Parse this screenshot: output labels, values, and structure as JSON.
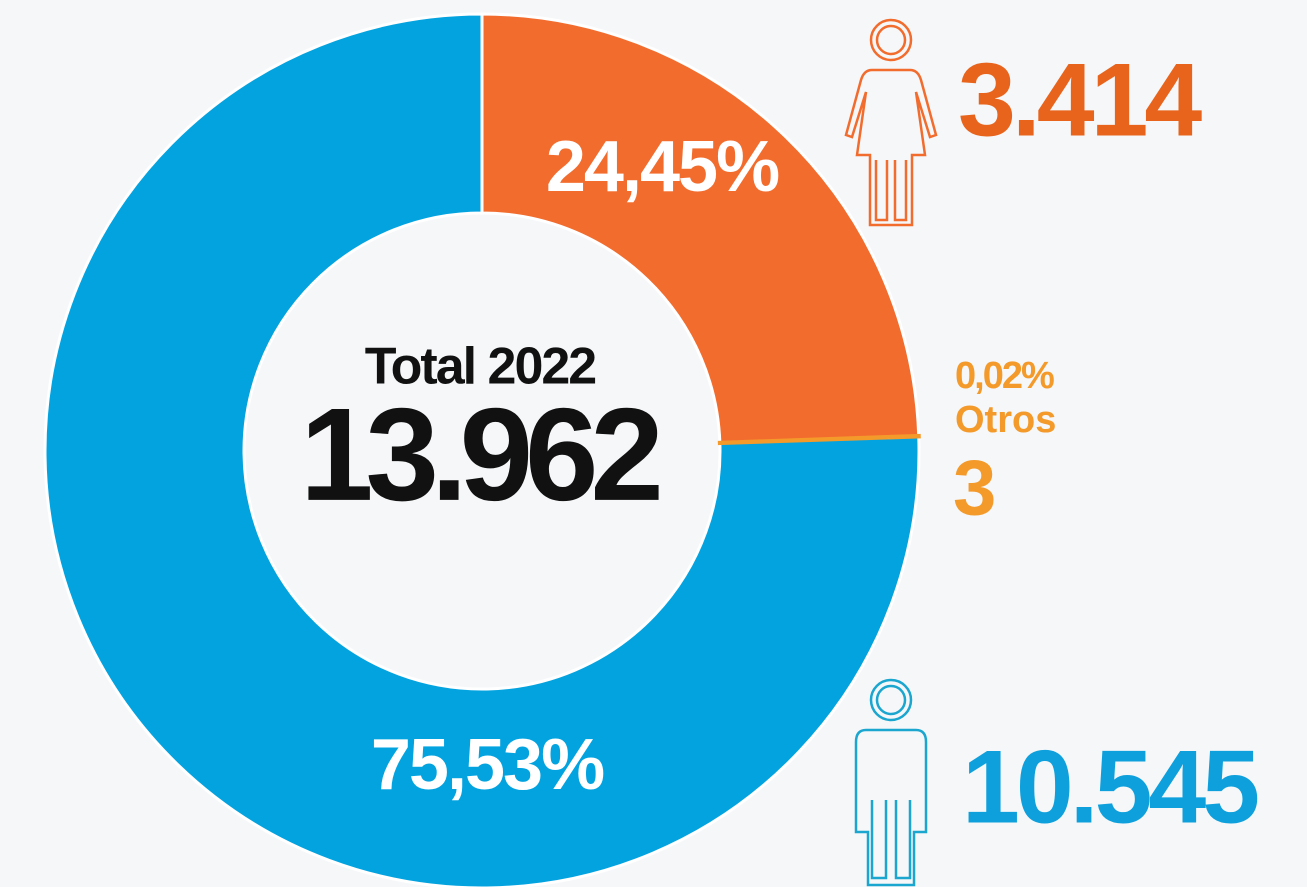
{
  "chart_data": {
    "type": "donut",
    "categories": [
      null,
      "Otros",
      null
    ],
    "values": [
      24.45,
      0.02,
      75.53
    ],
    "value_labels": [
      "24,45%",
      "0,02%",
      "75,53%"
    ],
    "counts": [
      3414,
      3,
      10545
    ],
    "count_labels": [
      "3.414",
      "3",
      "10.545"
    ],
    "colors": [
      "#f26c2e",
      "#f39a2b",
      "#03a3e0"
    ],
    "total_title": "Total 2022",
    "total": 13962,
    "total_label": "13.962"
  }
}
